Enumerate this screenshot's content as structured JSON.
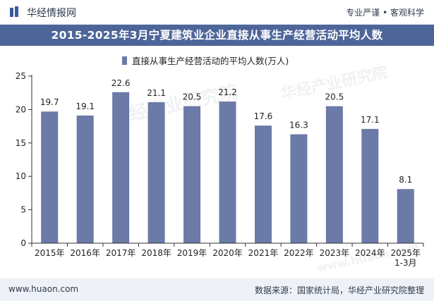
{
  "header": {
    "brand": "华经情报网",
    "tagline": "专业严谨 • 客观科学"
  },
  "title": "2015-2025年3月宁夏建筑业企业直接从事生产经营活动平均人数",
  "footer": {
    "url": "www.huaon.com",
    "source": "数据来源：国家统计局，华经产业研究院整理"
  },
  "watermark": {
    "text1": "华经产业研究院",
    "text2": "华经产业研究院",
    "url": "www.huaon.com"
  },
  "colors": {
    "bar": "#6b7aa6",
    "title_bg": "#4d6599",
    "footer_bg": "#eef2f8",
    "axis": "#333333",
    "text": "#222222"
  },
  "icons": {
    "logo": "book-icon"
  },
  "chart_data": {
    "type": "bar",
    "title": "",
    "categories": [
      "2015年",
      "2016年",
      "2017年",
      "2018年",
      "2019年",
      "2020年",
      "2021年",
      "2022年",
      "2023年",
      "2024年",
      "2025年\n1-3月"
    ],
    "series": [
      {
        "name": "直接从事生产经营活动的平均人数(万人)",
        "values": [
          19.7,
          19.1,
          22.6,
          21.1,
          20.5,
          21.2,
          17.6,
          16.3,
          20.5,
          17.1,
          8.1
        ]
      }
    ],
    "value_labels": [
      "19.7",
      "19.1",
      "22.6",
      "21.1",
      "20.5",
      "21.2",
      "17.6",
      "16.3",
      "20.5",
      "17.1",
      "8.1"
    ],
    "ylim": [
      0,
      25
    ],
    "yticks": [
      0,
      5,
      10,
      15,
      20,
      25
    ],
    "ytick_labels": [
      "0",
      "5",
      "10",
      "15",
      "20",
      "25"
    ],
    "xlabel": "",
    "ylabel": "",
    "grid": false,
    "legend": "top-center"
  }
}
